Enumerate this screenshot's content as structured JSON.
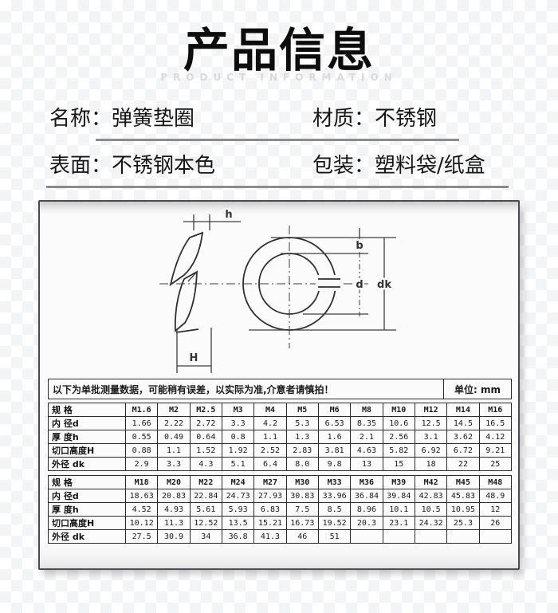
{
  "header": {
    "title": "产品信息",
    "subtitle": "PRODUCT INFORMATION"
  },
  "info": {
    "separator": "：",
    "fields": [
      {
        "label": "名称",
        "value": "弹簧垫圈"
      },
      {
        "label": "材质",
        "value": "不锈钢"
      },
      {
        "label": "表面",
        "value": "不锈钢本色"
      },
      {
        "label": "包装",
        "value": "塑料袋/纸盒"
      }
    ]
  },
  "diagram": {
    "labels": {
      "h": "h",
      "b": "b",
      "d": "d",
      "dk": "dk",
      "H": "H"
    }
  },
  "spec_table": {
    "notice": "以下为单批测量数据，可能稍有误差，以实际为准,介意者请慎拍！",
    "unit": "单位: mm",
    "row_headers": [
      "规 格",
      "内 径d",
      "厚 度h",
      "切口高度H",
      "外径 dk"
    ],
    "tables": [
      {
        "rows": [
          [
            "M1.6",
            "M2",
            "M2.5",
            "M3",
            "M4",
            "M5",
            "M6",
            "M8",
            "M10",
            "M12",
            "M14",
            "M16"
          ],
          [
            "1.66",
            "2.22",
            "2.72",
            "3.3",
            "4.2",
            "5.3",
            "6.53",
            "8.35",
            "10.6",
            "12.5",
            "14.5",
            "16.5"
          ],
          [
            "0.55",
            "0.49",
            "0.64",
            "0.8",
            "1.1",
            "1.3",
            "1.6",
            "2.1",
            "2.56",
            "3.1",
            "3.62",
            "4.12"
          ],
          [
            "0.88",
            "1.1",
            "1.52",
            "1.92",
            "2.52",
            "2.83",
            "3.81",
            "4.63",
            "5.82",
            "6.92",
            "6.72",
            "9.21"
          ],
          [
            "2.9",
            "3.3",
            "4.3",
            "5.1",
            "6.4",
            "8.0",
            "9.8",
            "13",
            "15",
            "18",
            "22",
            "25"
          ]
        ]
      },
      {
        "rows": [
          [
            "M18",
            "M20",
            "M22",
            "M24",
            "M27",
            "M30",
            "M33",
            "M36",
            "M39",
            "M42",
            "M45",
            "M48"
          ],
          [
            "18.63",
            "20.83",
            "22.84",
            "24.73",
            "27.93",
            "30.83",
            "33.96",
            "36.84",
            "39.84",
            "42.83",
            "45.83",
            "48.9"
          ],
          [
            "4.52",
            "4.93",
            "5.61",
            "5.93",
            "6.83",
            "7.5",
            "8.5",
            "8.96",
            "10.1",
            "10.5",
            "10.95",
            "12"
          ],
          [
            "10.12",
            "11.3",
            "12.52",
            "13.5",
            "15.21",
            "16.73",
            "19.52",
            "20.3",
            "23.1",
            "24.32",
            "25.3",
            "26"
          ],
          [
            "27.5",
            "30.9",
            "34",
            "36.8",
            "41.3",
            "46",
            "51",
            "",
            "",
            "",
            "",
            ""
          ]
        ]
      }
    ]
  },
  "colors": {
    "divider": "#8c8c8c",
    "table_border": "#2b2b2b",
    "drawing_line": "#3d3d3d",
    "subtitle_text": "#d7dadd"
  }
}
